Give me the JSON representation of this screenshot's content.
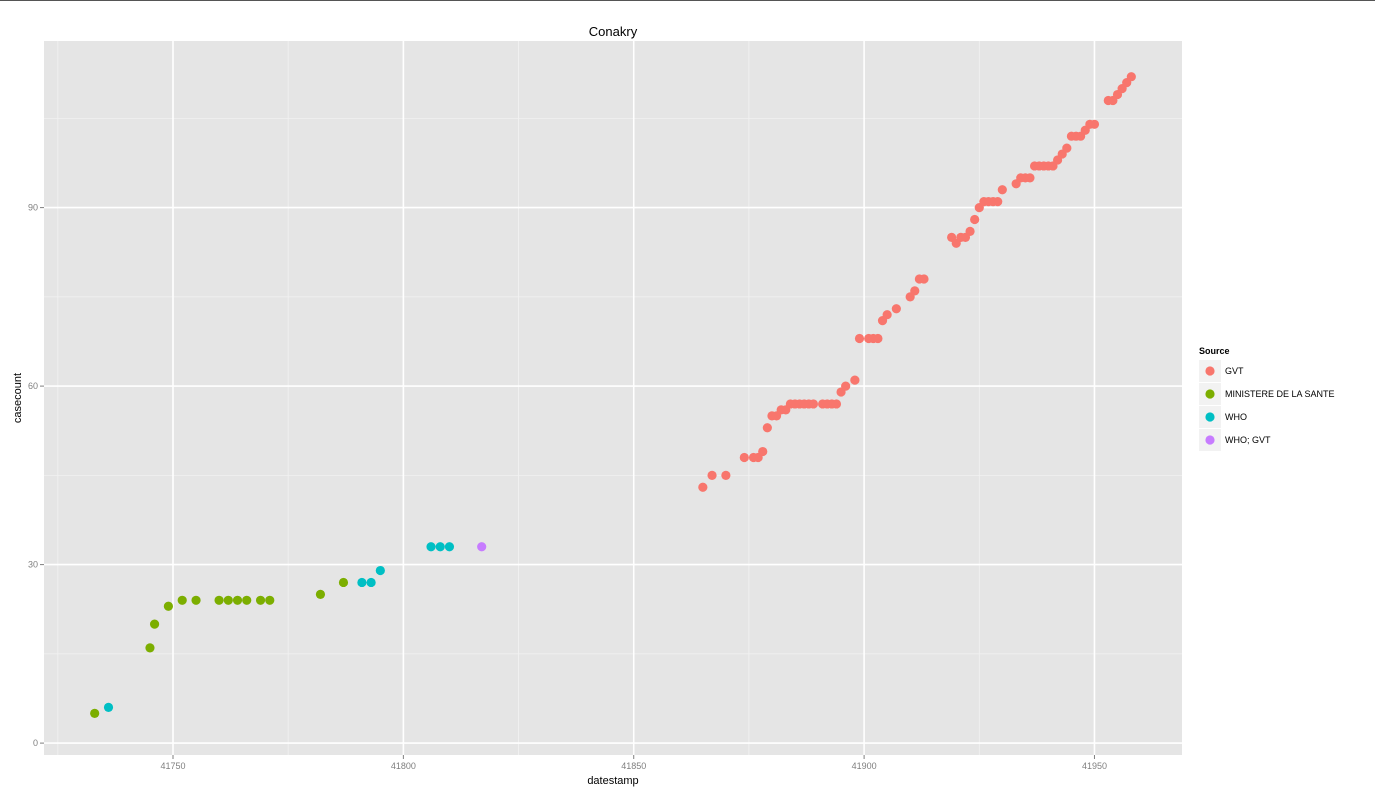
{
  "chart_data": {
    "type": "scatter",
    "title": "Conakry",
    "xlabel": "datestamp",
    "ylabel": "casecount",
    "xlim": [
      41722,
      41969
    ],
    "ylim": [
      -2,
      118
    ],
    "x_ticks": [
      41750,
      41800,
      41850,
      41900,
      41950
    ],
    "y_ticks": [
      0,
      30,
      60,
      90
    ],
    "grid": true,
    "legend": {
      "title": "Source",
      "position": "right"
    },
    "series": [
      {
        "name": "GVT",
        "color": "#F8766D",
        "points": [
          [
            41865,
            43
          ],
          [
            41867,
            45
          ],
          [
            41870,
            45
          ],
          [
            41874,
            48
          ],
          [
            41876,
            48
          ],
          [
            41877,
            48
          ],
          [
            41878,
            49
          ],
          [
            41879,
            53
          ],
          [
            41880,
            55
          ],
          [
            41881,
            55
          ],
          [
            41882,
            56
          ],
          [
            41883,
            56
          ],
          [
            41884,
            57
          ],
          [
            41885,
            57
          ],
          [
            41886,
            57
          ],
          [
            41887,
            57
          ],
          [
            41888,
            57
          ],
          [
            41889,
            57
          ],
          [
            41891,
            57
          ],
          [
            41892,
            57
          ],
          [
            41893,
            57
          ],
          [
            41894,
            57
          ],
          [
            41895,
            59
          ],
          [
            41896,
            60
          ],
          [
            41898,
            61
          ],
          [
            41899,
            68
          ],
          [
            41901,
            68
          ],
          [
            41902,
            68
          ],
          [
            41903,
            68
          ],
          [
            41904,
            71
          ],
          [
            41905,
            72
          ],
          [
            41907,
            73
          ],
          [
            41910,
            75
          ],
          [
            41911,
            76
          ],
          [
            41912,
            78
          ],
          [
            41913,
            78
          ],
          [
            41919,
            85
          ],
          [
            41920,
            84
          ],
          [
            41921,
            85
          ],
          [
            41922,
            85
          ],
          [
            41923,
            86
          ],
          [
            41924,
            88
          ],
          [
            41925,
            90
          ],
          [
            41926,
            91
          ],
          [
            41927,
            91
          ],
          [
            41928,
            91
          ],
          [
            41929,
            91
          ],
          [
            41930,
            93
          ],
          [
            41933,
            94
          ],
          [
            41934,
            95
          ],
          [
            41935,
            95
          ],
          [
            41936,
            95
          ],
          [
            41937,
            97
          ],
          [
            41938,
            97
          ],
          [
            41939,
            97
          ],
          [
            41940,
            97
          ],
          [
            41941,
            97
          ],
          [
            41942,
            98
          ],
          [
            41943,
            99
          ],
          [
            41944,
            100
          ],
          [
            41945,
            102
          ],
          [
            41946,
            102
          ],
          [
            41947,
            102
          ],
          [
            41948,
            103
          ],
          [
            41949,
            104
          ],
          [
            41950,
            104
          ],
          [
            41953,
            108
          ],
          [
            41954,
            108
          ],
          [
            41955,
            109
          ],
          [
            41956,
            110
          ],
          [
            41957,
            111
          ],
          [
            41958,
            112
          ]
        ]
      },
      {
        "name": "MINISTERE DE LA SANTE",
        "color": "#7CAE00",
        "points": [
          [
            41733,
            5
          ],
          [
            41745,
            16
          ],
          [
            41746,
            20
          ],
          [
            41749,
            23
          ],
          [
            41752,
            24
          ],
          [
            41755,
            24
          ],
          [
            41760,
            24
          ],
          [
            41762,
            24
          ],
          [
            41764,
            24
          ],
          [
            41766,
            24
          ],
          [
            41769,
            24
          ],
          [
            41771,
            24
          ],
          [
            41782,
            25
          ],
          [
            41787,
            27
          ]
        ]
      },
      {
        "name": "WHO",
        "color": "#00BFC4",
        "points": [
          [
            41736,
            6
          ],
          [
            41791,
            27
          ],
          [
            41793,
            27
          ],
          [
            41795,
            29
          ],
          [
            41806,
            33
          ],
          [
            41808,
            33
          ],
          [
            41810,
            33
          ]
        ]
      },
      {
        "name": "WHO; GVT",
        "color": "#C77CFF",
        "points": [
          [
            41817,
            33
          ]
        ]
      }
    ]
  }
}
